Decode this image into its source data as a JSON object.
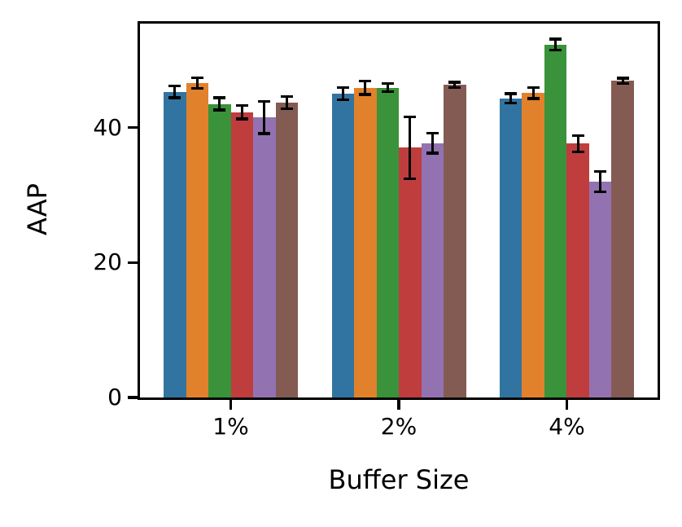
{
  "chart_data": {
    "type": "bar",
    "title": "",
    "xlabel": "Buffer Size",
    "ylabel": "AAP",
    "categories": [
      "1%",
      "2%",
      "4%"
    ],
    "yticks": [
      0,
      20,
      40
    ],
    "ylim": [
      0,
      55.4
    ],
    "grid": false,
    "legend": "none",
    "bar_colors_note": "six unlabeled series per group, left to right",
    "error_bar_color": "#000000",
    "series": [
      {
        "name": "blue",
        "color": "#3274a1",
        "values": [
          45.3,
          45.0,
          44.3
        ],
        "errors": [
          0.9,
          0.9,
          0.7
        ]
      },
      {
        "name": "orange",
        "color": "#e1812c",
        "values": [
          46.6,
          45.9,
          45.1
        ],
        "errors": [
          0.8,
          1.0,
          0.8
        ]
      },
      {
        "name": "green",
        "color": "#3a923a",
        "values": [
          43.5,
          45.9,
          52.3
        ],
        "errors": [
          0.9,
          0.6,
          0.8
        ]
      },
      {
        "name": "red",
        "color": "#c03d3e",
        "values": [
          42.3,
          37.0,
          37.6
        ],
        "errors": [
          1.0,
          4.6,
          1.2
        ]
      },
      {
        "name": "purple",
        "color": "#9372b2",
        "values": [
          41.5,
          37.7,
          32.0
        ],
        "errors": [
          2.4,
          1.5,
          1.5
        ]
      },
      {
        "name": "brown",
        "color": "#845b53",
        "values": [
          43.7,
          46.3,
          46.9
        ],
        "errors": [
          0.9,
          0.4,
          0.4
        ]
      }
    ]
  }
}
